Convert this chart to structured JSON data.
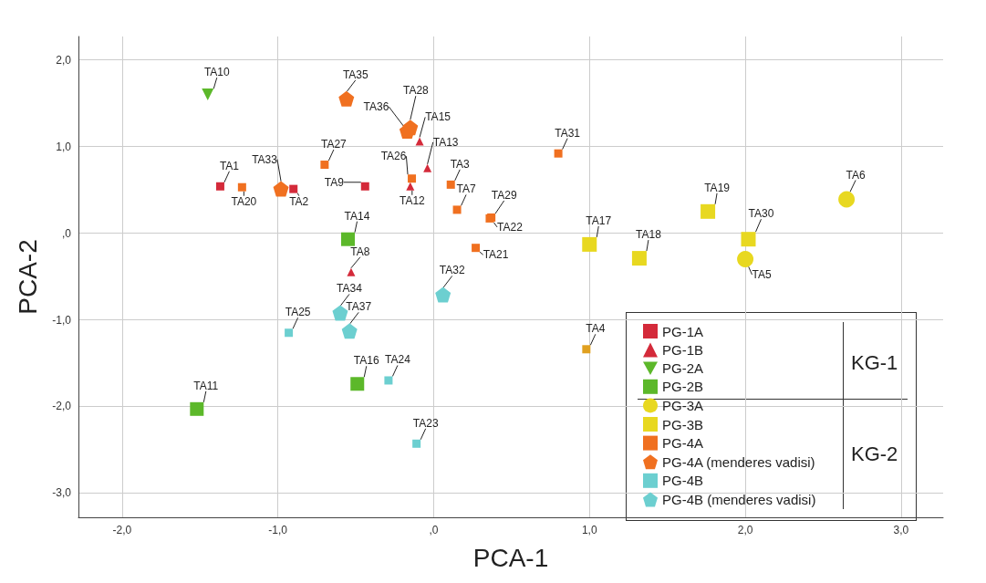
{
  "chart_data": {
    "type": "scatter",
    "xlabel": "PCA-1",
    "ylabel": "PCA-2",
    "xlim": [
      -2.28,
      3.27
    ],
    "ylim": [
      -3.28,
      2.27
    ],
    "xticks": [
      {
        "value": -2,
        "label": "-2,0"
      },
      {
        "value": -1,
        "label": "-1,0"
      },
      {
        "value": 0,
        "label": ",0"
      },
      {
        "value": 1,
        "label": "1,0"
      },
      {
        "value": 2,
        "label": "2,0"
      },
      {
        "value": 3,
        "label": "3,0"
      }
    ],
    "yticks": [
      {
        "value": -3,
        "label": "-3,0"
      },
      {
        "value": -2,
        "label": "-2,0"
      },
      {
        "value": -1,
        "label": "-1,0"
      },
      {
        "value": 0,
        "label": ",0"
      },
      {
        "value": 1,
        "label": "1,0"
      },
      {
        "value": 2,
        "label": "2,0"
      }
    ],
    "grid": true,
    "legend": "bottom right",
    "annotations": [
      "KG-1",
      "KG-2"
    ],
    "series": [
      {
        "name": "PG-1A",
        "color": "#d42a3a",
        "marker": "square",
        "x": [
          -1.37,
          -0.9,
          -0.44
        ],
        "values": [
          0.54,
          0.51,
          0.54
        ],
        "value_labels": [
          "TA1",
          "TA2",
          "TA9"
        ]
      },
      {
        "name": "PG-1B",
        "color": "#d42a3a",
        "marker": "triangle",
        "x": [
          -0.09,
          -0.04,
          -0.15,
          -0.53
        ],
        "values": [
          1.06,
          0.75,
          0.54,
          -0.45
        ],
        "value_labels": [
          "TA15",
          "TA13",
          "TA12",
          "TA8"
        ]
      },
      {
        "name": "PG-2A",
        "color": "#5cb82a",
        "marker": "triangle-down",
        "x": [
          -1.45
        ],
        "values": [
          1.6
        ],
        "value_labels": [
          "TA10"
        ]
      },
      {
        "name": "PG-2B",
        "color": "#5cb82a",
        "marker": "square",
        "x": [
          -0.55,
          -0.49,
          -1.52
        ],
        "values": [
          -0.07,
          -1.74,
          -2.03
        ],
        "value_labels": [
          "TA14",
          "TA16",
          "TA11"
        ]
      },
      {
        "name": "PG-3A",
        "color": "#e8d820",
        "marker": "circle",
        "x": [
          2.65,
          2.0
        ],
        "values": [
          0.39,
          -0.3
        ],
        "value_labels": [
          "TA6",
          "TA5"
        ]
      },
      {
        "name": "PG-3B",
        "color": "#e8d820",
        "marker": "square",
        "x": [
          1.0,
          1.32,
          1.76,
          2.02
        ],
        "values": [
          -0.13,
          -0.29,
          0.25,
          -0.07
        ],
        "value_labels": [
          "TA17",
          "TA18",
          "TA19",
          "TA30"
        ]
      },
      {
        "name": "PG-4A",
        "color": "#f07020",
        "marker": "square",
        "x": [
          -1.23,
          -0.7,
          -0.14,
          0.11,
          0.15,
          0.37,
          0.36,
          0.27,
          0.8,
          0.98
        ],
        "values": [
          0.53,
          0.79,
          0.63,
          0.56,
          0.27,
          0.18,
          0.17,
          -0.17,
          0.92,
          -1.34
        ],
        "value_labels": [
          "TA20",
          "TA27",
          "TA26",
          "TA3",
          "TA7",
          "TA29",
          "TA22",
          "TA21",
          "TA31",
          "TA4"
        ],
        "colors": [
          "#f07020",
          "#f07020",
          "#f07020",
          "#f07020",
          "#f07020",
          "#f07020",
          "#f07020",
          "#f07020",
          "#f07020",
          "#e0a020"
        ]
      },
      {
        "name": "PG-4A (menderes vadisi)",
        "color": "#f07020",
        "x": [
          -0.56,
          -0.15,
          -0.17,
          -0.98
        ],
        "values": [
          1.55,
          1.22,
          1.18,
          0.51
        ],
        "value_labels": [
          "TA35",
          "TA28",
          "TA36",
          "TA33"
        ]
      },
      {
        "name": "PG-4B",
        "color": "#6ccfd0",
        "marker": "square",
        "x": [
          -0.93,
          -0.29,
          -0.11
        ],
        "values": [
          -1.15,
          -1.7,
          -2.43
        ],
        "value_labels": [
          "TA25",
          "TA24",
          "TA23"
        ]
      },
      {
        "name": "PG-4B (menderes vadisi)",
        "color": "#6ccfd0",
        "x": [
          0.06,
          -0.6,
          -0.54
        ],
        "values": [
          -0.71,
          -0.92,
          -1.13
        ],
        "value_labels": [
          "TA32",
          "TA34",
          "TA37"
        ]
      }
    ]
  }
}
